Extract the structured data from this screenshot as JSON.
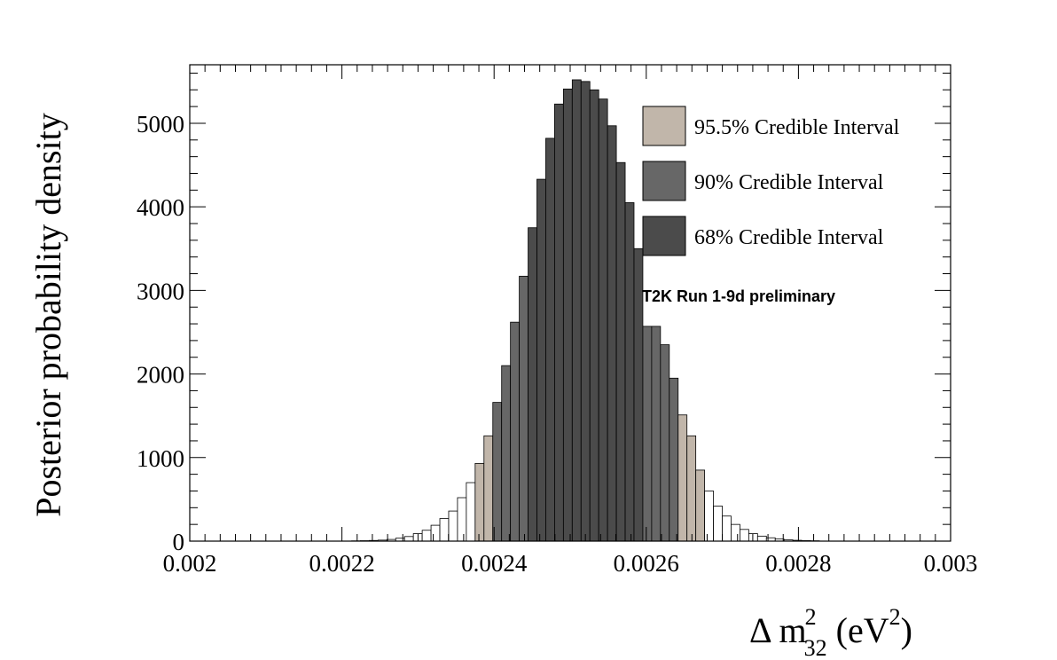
{
  "chart_data": {
    "type": "bar",
    "ylabel": "Posterior probability density",
    "xlabel": {
      "symbol": "Δ m",
      "sup": "2",
      "sub": "32",
      "unit_open": " (eV",
      "unit_sup": "2",
      "unit_close": ")"
    },
    "annotation": "T2K Run 1-9d preliminary",
    "xlim": [
      0.002,
      0.003
    ],
    "ylim": [
      0,
      5700
    ],
    "xticks": [
      {
        "value": 0.002,
        "label": "0.002"
      },
      {
        "value": 0.0022,
        "label": "0.0022"
      },
      {
        "value": 0.0024,
        "label": "0.0024"
      },
      {
        "value": 0.0026,
        "label": "0.0026"
      },
      {
        "value": 0.0028,
        "label": "0.0028"
      },
      {
        "value": 0.003,
        "label": "0.003"
      }
    ],
    "yticks": [
      {
        "value": 0,
        "label": "0"
      },
      {
        "value": 1000,
        "label": "1000"
      },
      {
        "value": 2000,
        "label": "2000"
      },
      {
        "value": 3000,
        "label": "3000"
      },
      {
        "value": 4000,
        "label": "4000"
      },
      {
        "value": 5000,
        "label": "5000"
      }
    ],
    "legend_position": "top-right",
    "legend": [
      {
        "label": "95.5% Credible Interval",
        "color": "#c1b6aa"
      },
      {
        "label": "90% Credible Interval",
        "color": "#676767"
      },
      {
        "label": "68% Credible Interval",
        "color": "#4b4b4b"
      }
    ],
    "colors": {
      "none": "#ffffff",
      "95.5": "#c1b6aa",
      "90": "#676767",
      "68": "#4b4b4b",
      "stroke": "#000000"
    },
    "bin_width": 1.16e-05,
    "bins": [
      {
        "x": 0.0022185,
        "y": 3,
        "region": "none"
      },
      {
        "x": 0.0022301,
        "y": 5,
        "region": "none"
      },
      {
        "x": 0.0022417,
        "y": 8,
        "region": "none"
      },
      {
        "x": 0.0022533,
        "y": 12,
        "region": "none"
      },
      {
        "x": 0.0022649,
        "y": 20,
        "region": "none"
      },
      {
        "x": 0.0022765,
        "y": 35,
        "region": "none"
      },
      {
        "x": 0.0022881,
        "y": 55,
        "region": "none"
      },
      {
        "x": 0.0022997,
        "y": 90,
        "region": "none"
      },
      {
        "x": 0.0023113,
        "y": 130,
        "region": "none"
      },
      {
        "x": 0.0023229,
        "y": 190,
        "region": "none"
      },
      {
        "x": 0.0023345,
        "y": 270,
        "region": "none"
      },
      {
        "x": 0.0023461,
        "y": 360,
        "region": "none"
      },
      {
        "x": 0.0023577,
        "y": 520,
        "region": "none"
      },
      {
        "x": 0.0023693,
        "y": 700,
        "region": "none"
      },
      {
        "x": 0.0023809,
        "y": 930,
        "region": "95.5"
      },
      {
        "x": 0.0023925,
        "y": 1260,
        "region": "95.5"
      },
      {
        "x": 0.0024041,
        "y": 1660,
        "region": "90"
      },
      {
        "x": 0.0024157,
        "y": 2100,
        "region": "90"
      },
      {
        "x": 0.0024273,
        "y": 2620,
        "region": "90"
      },
      {
        "x": 0.0024389,
        "y": 3170,
        "region": "90"
      },
      {
        "x": 0.0024505,
        "y": 3750,
        "region": "68"
      },
      {
        "x": 0.0024621,
        "y": 4330,
        "region": "68"
      },
      {
        "x": 0.0024737,
        "y": 4820,
        "region": "68"
      },
      {
        "x": 0.0024853,
        "y": 5230,
        "region": "68"
      },
      {
        "x": 0.0024969,
        "y": 5410,
        "region": "68"
      },
      {
        "x": 0.0025085,
        "y": 5520,
        "region": "68"
      },
      {
        "x": 0.0025201,
        "y": 5500,
        "region": "68"
      },
      {
        "x": 0.0025317,
        "y": 5400,
        "region": "68"
      },
      {
        "x": 0.0025433,
        "y": 5290,
        "region": "68"
      },
      {
        "x": 0.0025549,
        "y": 4970,
        "region": "68"
      },
      {
        "x": 0.0025665,
        "y": 4530,
        "region": "68"
      },
      {
        "x": 0.0025781,
        "y": 4050,
        "region": "68"
      },
      {
        "x": 0.0025897,
        "y": 3500,
        "region": "68"
      },
      {
        "x": 0.0026013,
        "y": 2570,
        "region": "90"
      },
      {
        "x": 0.0026129,
        "y": 2570,
        "region": "90"
      },
      {
        "x": 0.0026245,
        "y": 2350,
        "region": "90"
      },
      {
        "x": 0.0026361,
        "y": 1950,
        "region": "90"
      },
      {
        "x": 0.0026477,
        "y": 1510,
        "region": "95.5"
      },
      {
        "x": 0.0026593,
        "y": 1260,
        "region": "95.5"
      },
      {
        "x": 0.0026709,
        "y": 850,
        "region": "95.5"
      },
      {
        "x": 0.0026825,
        "y": 600,
        "region": "none"
      },
      {
        "x": 0.0026941,
        "y": 420,
        "region": "none"
      },
      {
        "x": 0.0027057,
        "y": 300,
        "region": "none"
      },
      {
        "x": 0.0027173,
        "y": 200,
        "region": "none"
      },
      {
        "x": 0.0027289,
        "y": 140,
        "region": "none"
      },
      {
        "x": 0.0027405,
        "y": 90,
        "region": "none"
      },
      {
        "x": 0.0027521,
        "y": 60,
        "region": "none"
      },
      {
        "x": 0.0027637,
        "y": 40,
        "region": "none"
      },
      {
        "x": 0.0027753,
        "y": 25,
        "region": "none"
      },
      {
        "x": 0.0027869,
        "y": 15,
        "region": "none"
      },
      {
        "x": 0.0027985,
        "y": 10,
        "region": "none"
      },
      {
        "x": 0.0028101,
        "y": 6,
        "region": "none"
      },
      {
        "x": 0.0028217,
        "y": 4,
        "region": "none"
      }
    ]
  }
}
